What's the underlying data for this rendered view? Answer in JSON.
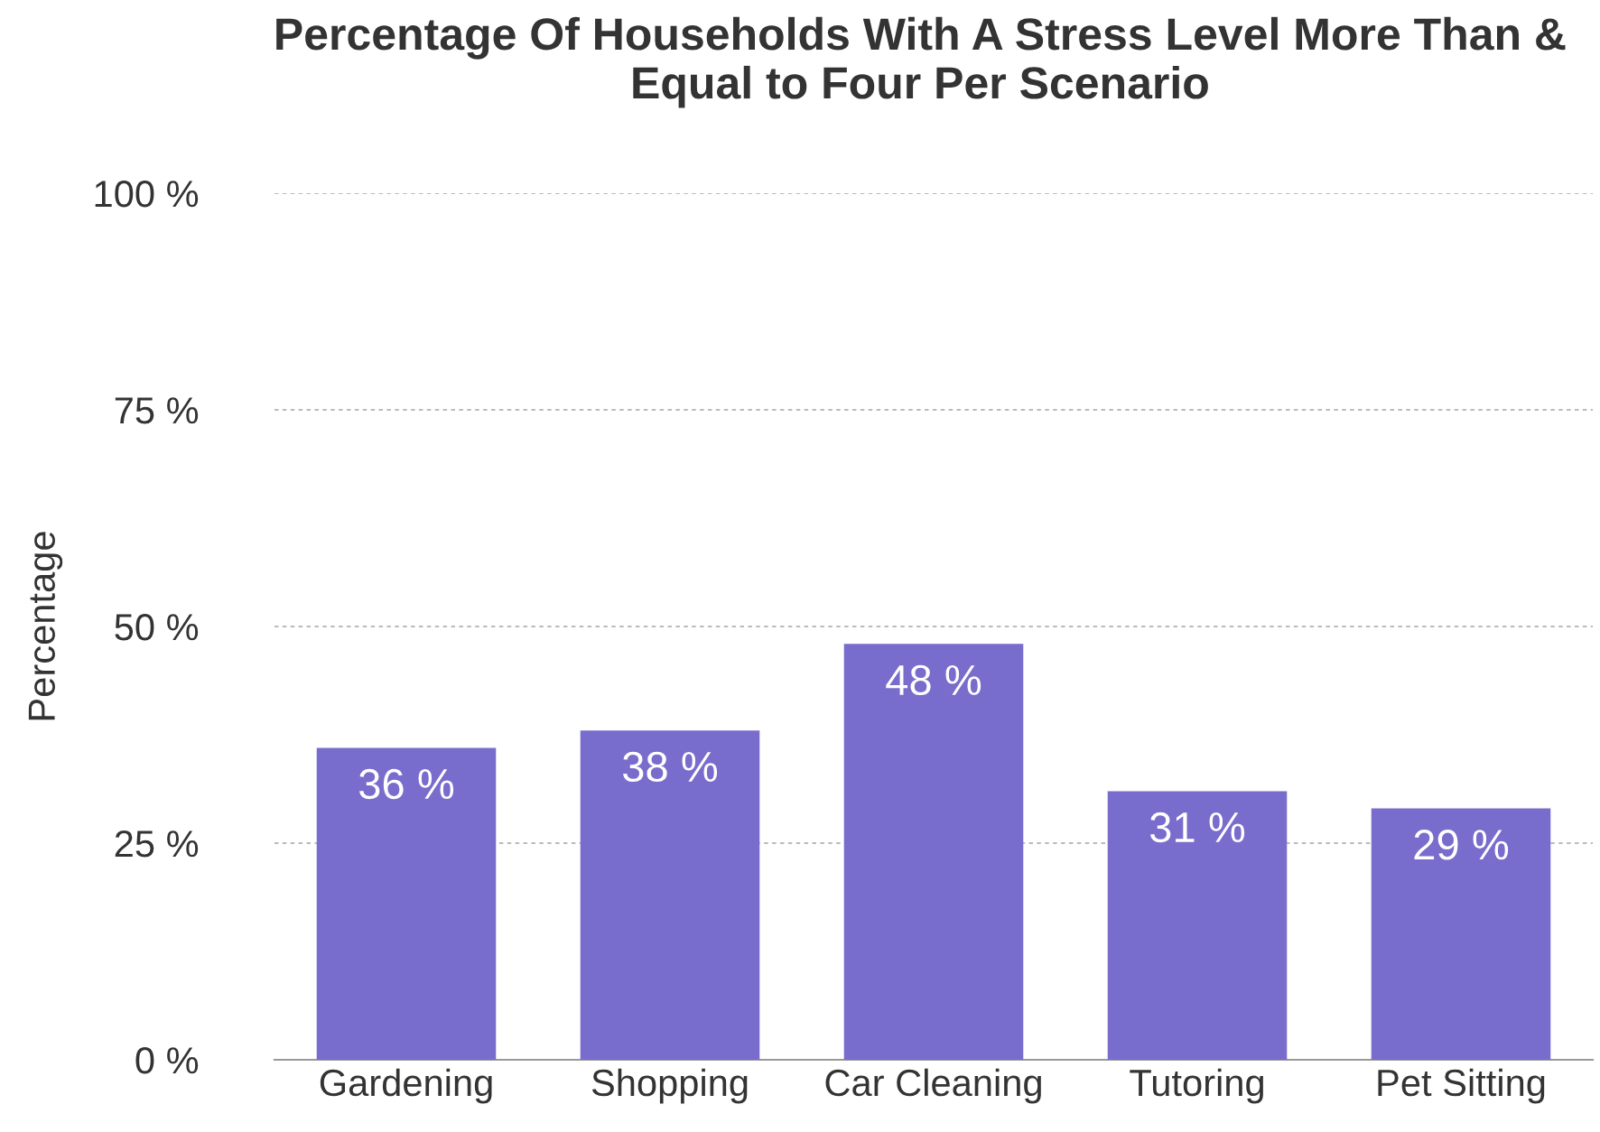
{
  "chart_data": {
    "type": "bar",
    "title": "Percentage Of Households With A Stress Level More Than & Equal to Four Per Scenario",
    "ylabel": "Percentage",
    "categories": [
      "Gardening",
      "Shopping",
      "Car Cleaning",
      "Tutoring",
      "Pet Sitting"
    ],
    "values": [
      36,
      38,
      48,
      31,
      29
    ],
    "value_labels": [
      "36 %",
      "38 %",
      "48 %",
      "31 %",
      "29 %"
    ],
    "color": "#786dcc",
    "ylim": [
      0,
      100
    ],
    "yticks": [
      {
        "value": 0,
        "label": "0 %"
      },
      {
        "value": 25,
        "label": "25 %"
      },
      {
        "value": 50,
        "label": "50 %"
      },
      {
        "value": 75,
        "label": "75 %"
      },
      {
        "value": 100,
        "label": "100 %"
      }
    ],
    "grid": "y"
  }
}
